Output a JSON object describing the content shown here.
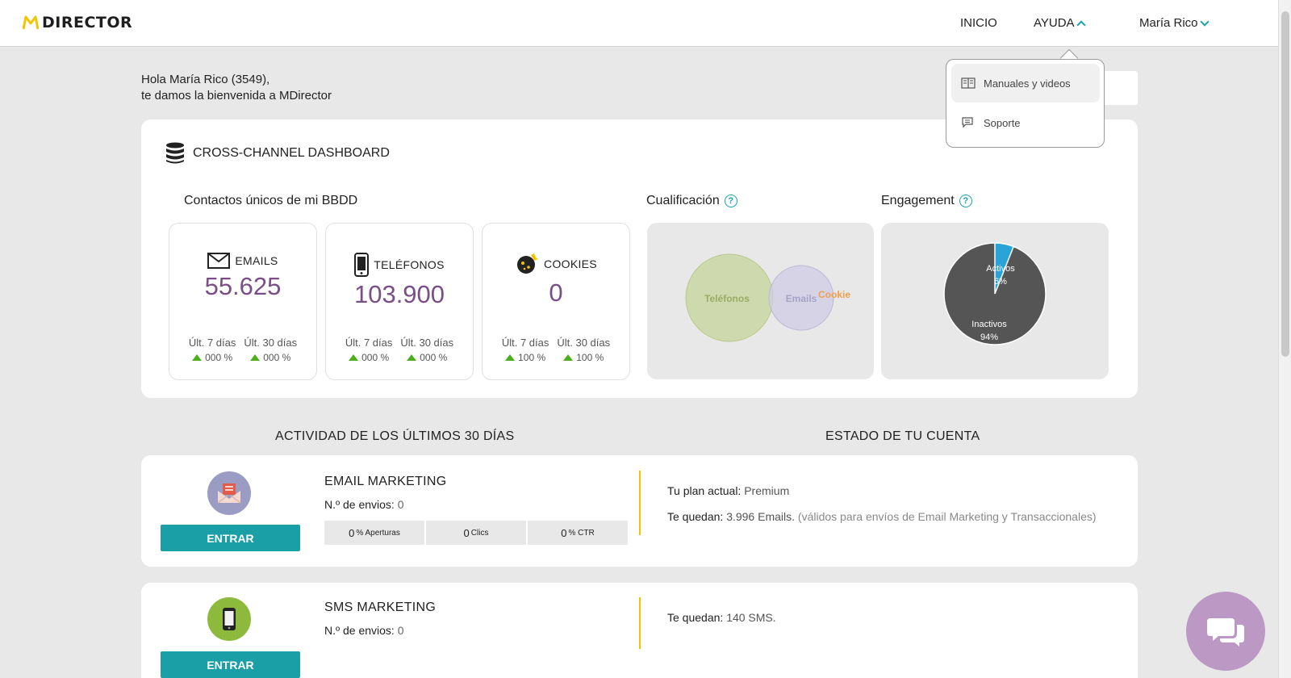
{
  "header": {
    "logo_text": "DIRECTOR",
    "nav": {
      "inicio": "INICIO",
      "ayuda": "AYUDA",
      "user": "María Rico"
    }
  },
  "help_menu": {
    "items": [
      {
        "label": "Manuales y videos",
        "icon": "book-icon"
      },
      {
        "label": "Soporte",
        "icon": "chat-icon"
      }
    ]
  },
  "greeting": {
    "line1": "Hola María Rico (3549),",
    "line2": "te damos la bienvenida a MDirector"
  },
  "dashboard": {
    "title": "CROSS-CHANNEL DASHBOARD",
    "contacts_title": "Contactos únicos de mi BBDD",
    "qualification_title": "Cualificación",
    "engagement_title": "Engagement",
    "stats": [
      {
        "label": "EMAILS",
        "value": "55.625",
        "periods": [
          {
            "label": "Últ. 7 días",
            "pct": "000 %"
          },
          {
            "label": "Últ. 30 días",
            "pct": "000 %"
          }
        ]
      },
      {
        "label": "TELÉFONOS",
        "value": "103.900",
        "periods": [
          {
            "label": "Últ. 7 días",
            "pct": "000 %"
          },
          {
            "label": "Últ. 30 días",
            "pct": "000 %"
          }
        ]
      },
      {
        "label": "COOKIES",
        "value": "0",
        "periods": [
          {
            "label": "Últ. 7 días",
            "pct": "100 %"
          },
          {
            "label": "Últ. 30 días",
            "pct": "100 %"
          }
        ]
      }
    ],
    "venn": {
      "labels": [
        "Teléfonos",
        "Emails",
        "Cookie"
      ]
    },
    "engagement": {
      "activos_label": "Activos",
      "activos_pct": "6%",
      "inactivos_label": "Inactivos",
      "inactivos_pct": "94%",
      "activos_fraction": 0.06
    }
  },
  "columns": {
    "activity": "ACTIVIDAD DE LOS ÚLTIMOS 30 DÍAS",
    "account": "ESTADO DE TU CUENTA"
  },
  "email_marketing": {
    "title": "EMAIL MARKETING",
    "sends_label": "N.º de envios:",
    "sends_value": "0",
    "button": "ENTRAR",
    "metrics": [
      {
        "value": "0",
        "label": "% Aperturas"
      },
      {
        "value": "0",
        "label": " Clics"
      },
      {
        "value": "0",
        "label": "% CTR"
      }
    ],
    "plan_label": "Tu plan actual:",
    "plan_value": "Premium",
    "remaining_label": "Te quedan:",
    "remaining_value": "3.996 Emails.",
    "remaining_note": "(válidos para envíos de Email Marketing y Transaccionales)"
  },
  "sms_marketing": {
    "title": "SMS MARKETING",
    "sends_label": "N.º de envios:",
    "sends_value": "0",
    "button": "ENTRAR",
    "remaining_label": "Te quedan:",
    "remaining_value": "140 SMS."
  },
  "colors": {
    "accent": "#1a9fa7",
    "value_purple": "#7a4f87",
    "brand_yellow": "#f5c400",
    "chat": "#bc98c4"
  }
}
